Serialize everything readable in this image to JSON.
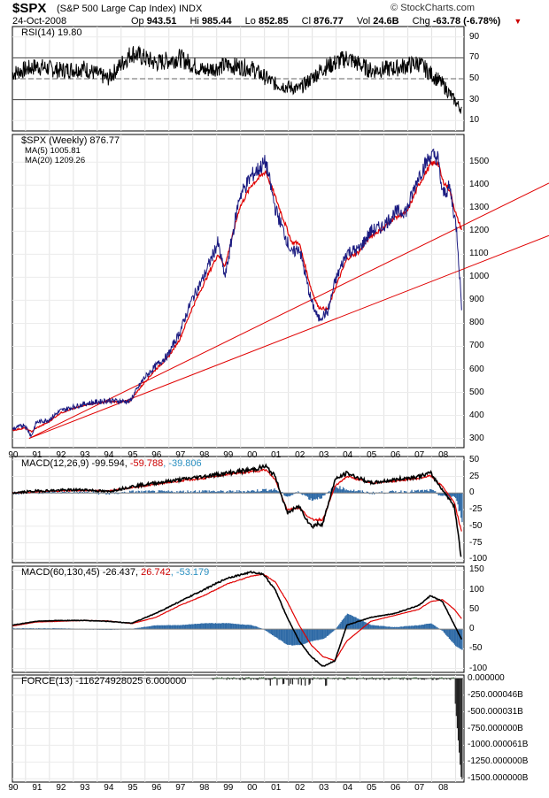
{
  "header": {
    "symbol": "$SPX",
    "name": "(S&P 500 Large Cap Index) INDX",
    "brand": "© StockCharts.com",
    "date": "24-Oct-2008",
    "open_label": "Op",
    "open": "943.51",
    "high_label": "Hi",
    "high": "985.44",
    "low_label": "Lo",
    "low": "852.85",
    "close_label": "Cl",
    "close": "876.77",
    "vol_label": "Vol",
    "vol": "24.6B",
    "chg_label": "Chg",
    "chg": "-63.78 (-6.78%)",
    "down_arrow_color": "#cc0000"
  },
  "labels": {
    "rsi": "RSI(14) 19.80",
    "spx": "$SPX (Weekly) 876.77",
    "ma5": "MA(5) 1005.81",
    "ma20": "MA(20) 1209.26",
    "macd1_a": "MACD(12,26,9) -99.594, ",
    "macd1_b": "-59.788",
    "macd1_c": ", -39.806",
    "macd2_a": "MACD(60,130,45) -26.437, ",
    "macd2_b": "26.742",
    "macd2_c": ", -53.179",
    "force": "FORCE(13) -116274928025 6.000000"
  },
  "colors": {
    "price": "#1a1a80",
    "ma5": "#1a1a80",
    "ma20": "#e00000",
    "trend": "#e00000",
    "hist": "#2e6aa6",
    "grid": "#9a9a9a"
  },
  "chart_data": [
    {
      "type": "line",
      "title": "RSI(14)",
      "ylim": [
        0,
        100
      ],
      "yticks": [
        "90",
        "70",
        "50",
        "30",
        "10"
      ],
      "yticks_vals": [
        90,
        70,
        50,
        30,
        10
      ],
      "reference_lines": [
        70,
        50,
        30
      ],
      "x": [
        1990,
        1991,
        1992,
        1993,
        1994,
        1995,
        1996,
        1997,
        1998,
        1999,
        2000,
        2001,
        2002,
        2003,
        2004,
        2005,
        2006,
        2007,
        2008,
        2008.8
      ],
      "values": [
        55,
        62,
        58,
        60,
        50,
        75,
        65,
        70,
        58,
        63,
        60,
        45,
        40,
        60,
        70,
        58,
        60,
        65,
        45,
        20
      ]
    },
    {
      "type": "line",
      "title": "$SPX (Weekly)",
      "ylim": [
        260,
        1620
      ],
      "yticks": [
        "1500",
        "1400",
        "1300",
        "1200",
        "1100",
        "1000",
        "900",
        "800",
        "700",
        "600",
        "500",
        "400",
        "300"
      ],
      "yticks_vals": [
        1500,
        1400,
        1300,
        1200,
        1100,
        1000,
        900,
        800,
        700,
        600,
        500,
        400,
        300
      ],
      "x": [
        1990,
        1990.5,
        1990.8,
        1991,
        1991.5,
        1992,
        1993,
        1994,
        1994.9,
        1995.5,
        1996,
        1996.5,
        1997,
        1997.5,
        1998,
        1998.6,
        1998.9,
        1999.5,
        2000,
        2000.6,
        2001,
        2001.7,
        2002,
        2002.5,
        2002.8,
        2003.2,
        2003.5,
        2004,
        2004.5,
        2005,
        2005.5,
        2006,
        2006.5,
        2007,
        2007.5,
        2007.8,
        2008,
        2008.3,
        2008.6,
        2008.8
      ],
      "series": [
        {
          "name": "$SPX",
          "values": [
            340,
            360,
            310,
            370,
            380,
            420,
            450,
            465,
            460,
            560,
            615,
            660,
            760,
            900,
            1000,
            1150,
            1000,
            1350,
            1440,
            1500,
            1300,
            1100,
            1130,
            900,
            820,
            850,
            980,
            1110,
            1120,
            1200,
            1220,
            1280,
            1290,
            1440,
            1530,
            1520,
            1360,
            1390,
            1200,
            876
          ]
        },
        {
          "name": "MA(20)",
          "values": [
            335,
            345,
            330,
            345,
            370,
            410,
            445,
            460,
            460,
            540,
            600,
            650,
            730,
            860,
            970,
            1100,
            1050,
            1300,
            1400,
            1460,
            1350,
            1150,
            1150,
            950,
            870,
            860,
            950,
            1080,
            1110,
            1180,
            1210,
            1260,
            1280,
            1400,
            1490,
            1500,
            1420,
            1380,
            1260,
            1209
          ]
        }
      ],
      "trendlines": [
        {
          "from": [
            1990.7,
            300
          ],
          "to": [
            2008.85,
            1225
          ]
        },
        {
          "from": [
            1990.7,
            300
          ],
          "to": [
            2008.85,
            1035
          ]
        }
      ],
      "x_tick_labels": [
        "90",
        "91",
        "92",
        "93",
        "94",
        "95",
        "96",
        "97",
        "98",
        "99",
        "00",
        "01",
        "02",
        "03",
        "04",
        "05",
        "06",
        "07",
        "08"
      ]
    },
    {
      "type": "line",
      "title": "MACD(12,26,9)",
      "ylim": [
        -105,
        55
      ],
      "yticks": [
        "50",
        "25",
        "0",
        "-25",
        "-50",
        "-75",
        "-100"
      ],
      "yticks_vals": [
        50,
        25,
        0,
        -25,
        -50,
        -75,
        -100
      ],
      "x": [
        1990,
        1991,
        1992,
        1993,
        1994,
        1995,
        1996,
        1997,
        1998,
        1999,
        2000,
        2000.6,
        2001,
        2001.5,
        2002,
        2002.5,
        2003,
        2003.5,
        2004,
        2005,
        2006,
        2007,
        2007.5,
        2008,
        2008.5,
        2008.8
      ],
      "series": [
        {
          "name": "MACD",
          "values": [
            0,
            3,
            4,
            5,
            2,
            10,
            15,
            20,
            25,
            30,
            35,
            40,
            25,
            -30,
            -20,
            -50,
            -45,
            20,
            30,
            15,
            20,
            25,
            30,
            5,
            -20,
            -99.6
          ]
        },
        {
          "name": "Signal",
          "values": [
            0,
            2,
            3,
            4,
            3,
            8,
            13,
            18,
            22,
            28,
            32,
            35,
            20,
            -25,
            -22,
            -40,
            -40,
            10,
            25,
            15,
            18,
            22,
            26,
            10,
            -15,
            -59.8
          ]
        }
      ],
      "histogram": [
        0,
        1,
        1,
        1,
        -1,
        2,
        2,
        2,
        3,
        2,
        3,
        5,
        5,
        -5,
        2,
        -10,
        -5,
        10,
        5,
        0,
        2,
        3,
        4,
        -5,
        -5,
        -39.8
      ]
    },
    {
      "type": "line",
      "title": "MACD(60,130,45)",
      "ylim": [
        -110,
        160
      ],
      "yticks": [
        "150",
        "100",
        "50",
        "0",
        "-50",
        "-100"
      ],
      "yticks_vals": [
        150,
        100,
        50,
        0,
        -50,
        -100
      ],
      "x": [
        1990,
        1991,
        1992,
        1993,
        1994,
        1995,
        1996,
        1997,
        1998,
        1999,
        2000,
        2000.5,
        2001,
        2001.5,
        2002,
        2002.5,
        2003,
        2003.5,
        2004,
        2005,
        2006,
        2007,
        2007.5,
        2008,
        2008.5,
        2008.8
      ],
      "series": [
        {
          "name": "MACD",
          "values": [
            10,
            20,
            22,
            22,
            20,
            15,
            40,
            70,
            100,
            130,
            145,
            140,
            100,
            30,
            -30,
            -70,
            -95,
            -80,
            10,
            30,
            40,
            60,
            85,
            70,
            10,
            -26.4
          ]
        },
        {
          "name": "Signal",
          "values": [
            8,
            18,
            20,
            22,
            21,
            14,
            30,
            60,
            85,
            115,
            135,
            140,
            120,
            70,
            10,
            -40,
            -70,
            -80,
            -30,
            20,
            35,
            50,
            70,
            75,
            50,
            26.7
          ]
        }
      ],
      "histogram": [
        2,
        2,
        2,
        0,
        -1,
        1,
        10,
        10,
        15,
        15,
        10,
        0,
        -20,
        -40,
        -40,
        -30,
        -25,
        0,
        40,
        10,
        5,
        10,
        15,
        -5,
        -40,
        -53.2
      ]
    },
    {
      "type": "bar",
      "title": "FORCE(13)",
      "ylim": [
        -1550,
        50
      ],
      "yticks": [
        "0.000000",
        "-250.000046B",
        "-500.000031B",
        "-750.000000B",
        "-1000.000061B",
        "-1250.000000B",
        "-1500.000000B"
      ],
      "yticks_vals": [
        0,
        -250,
        -500,
        -750,
        -1000,
        -1250,
        -1500
      ],
      "x_tick_labels": [
        "90",
        "91",
        "92",
        "93",
        "94",
        "95",
        "96",
        "97",
        "98",
        "99",
        "00",
        "01",
        "02",
        "03",
        "04",
        "05",
        "06",
        "07",
        "08"
      ]
    }
  ]
}
